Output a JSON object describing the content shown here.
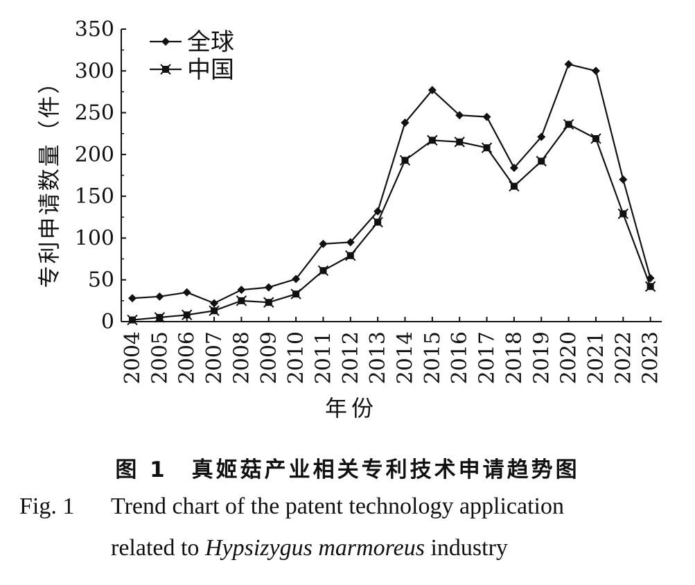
{
  "chart_data": {
    "type": "line",
    "ylabel": "专利申请数量（件）",
    "xlabel": "年份",
    "x": [
      "2004",
      "2005",
      "2006",
      "2007",
      "2008",
      "2009",
      "2010",
      "2011",
      "2012",
      "2013",
      "2014",
      "2015",
      "2016",
      "2017",
      "2018",
      "2019",
      "2020",
      "2021",
      "2022",
      "2023"
    ],
    "ylim": [
      0,
      350
    ],
    "yticks": [
      "0",
      "50",
      "100",
      "150",
      "200",
      "250",
      "300",
      "350"
    ],
    "legend_position": "top-left",
    "grid": false,
    "series": [
      {
        "name": "全球",
        "marker": "diamond",
        "values": [
          28,
          30,
          35,
          22,
          38,
          41,
          51,
          93,
          95,
          132,
          238,
          277,
          247,
          245,
          184,
          221,
          308,
          300,
          170,
          52
        ]
      },
      {
        "name": "中国",
        "marker": "square-x",
        "values": [
          2,
          5,
          8,
          13,
          25,
          23,
          33,
          61,
          79,
          119,
          193,
          217,
          215,
          208,
          162,
          192,
          236,
          219,
          129,
          42
        ]
      }
    ]
  },
  "caption": {
    "cn": "图 1　真姬菇产业相关专利技术申请趋势图",
    "en_fig": "Fig. 1",
    "en_line1": "Trend chart of the patent technology application",
    "en_line2_pre": "related to ",
    "en_line2_italic": "Hypsizygus marmoreus",
    "en_line2_post": " industry"
  }
}
